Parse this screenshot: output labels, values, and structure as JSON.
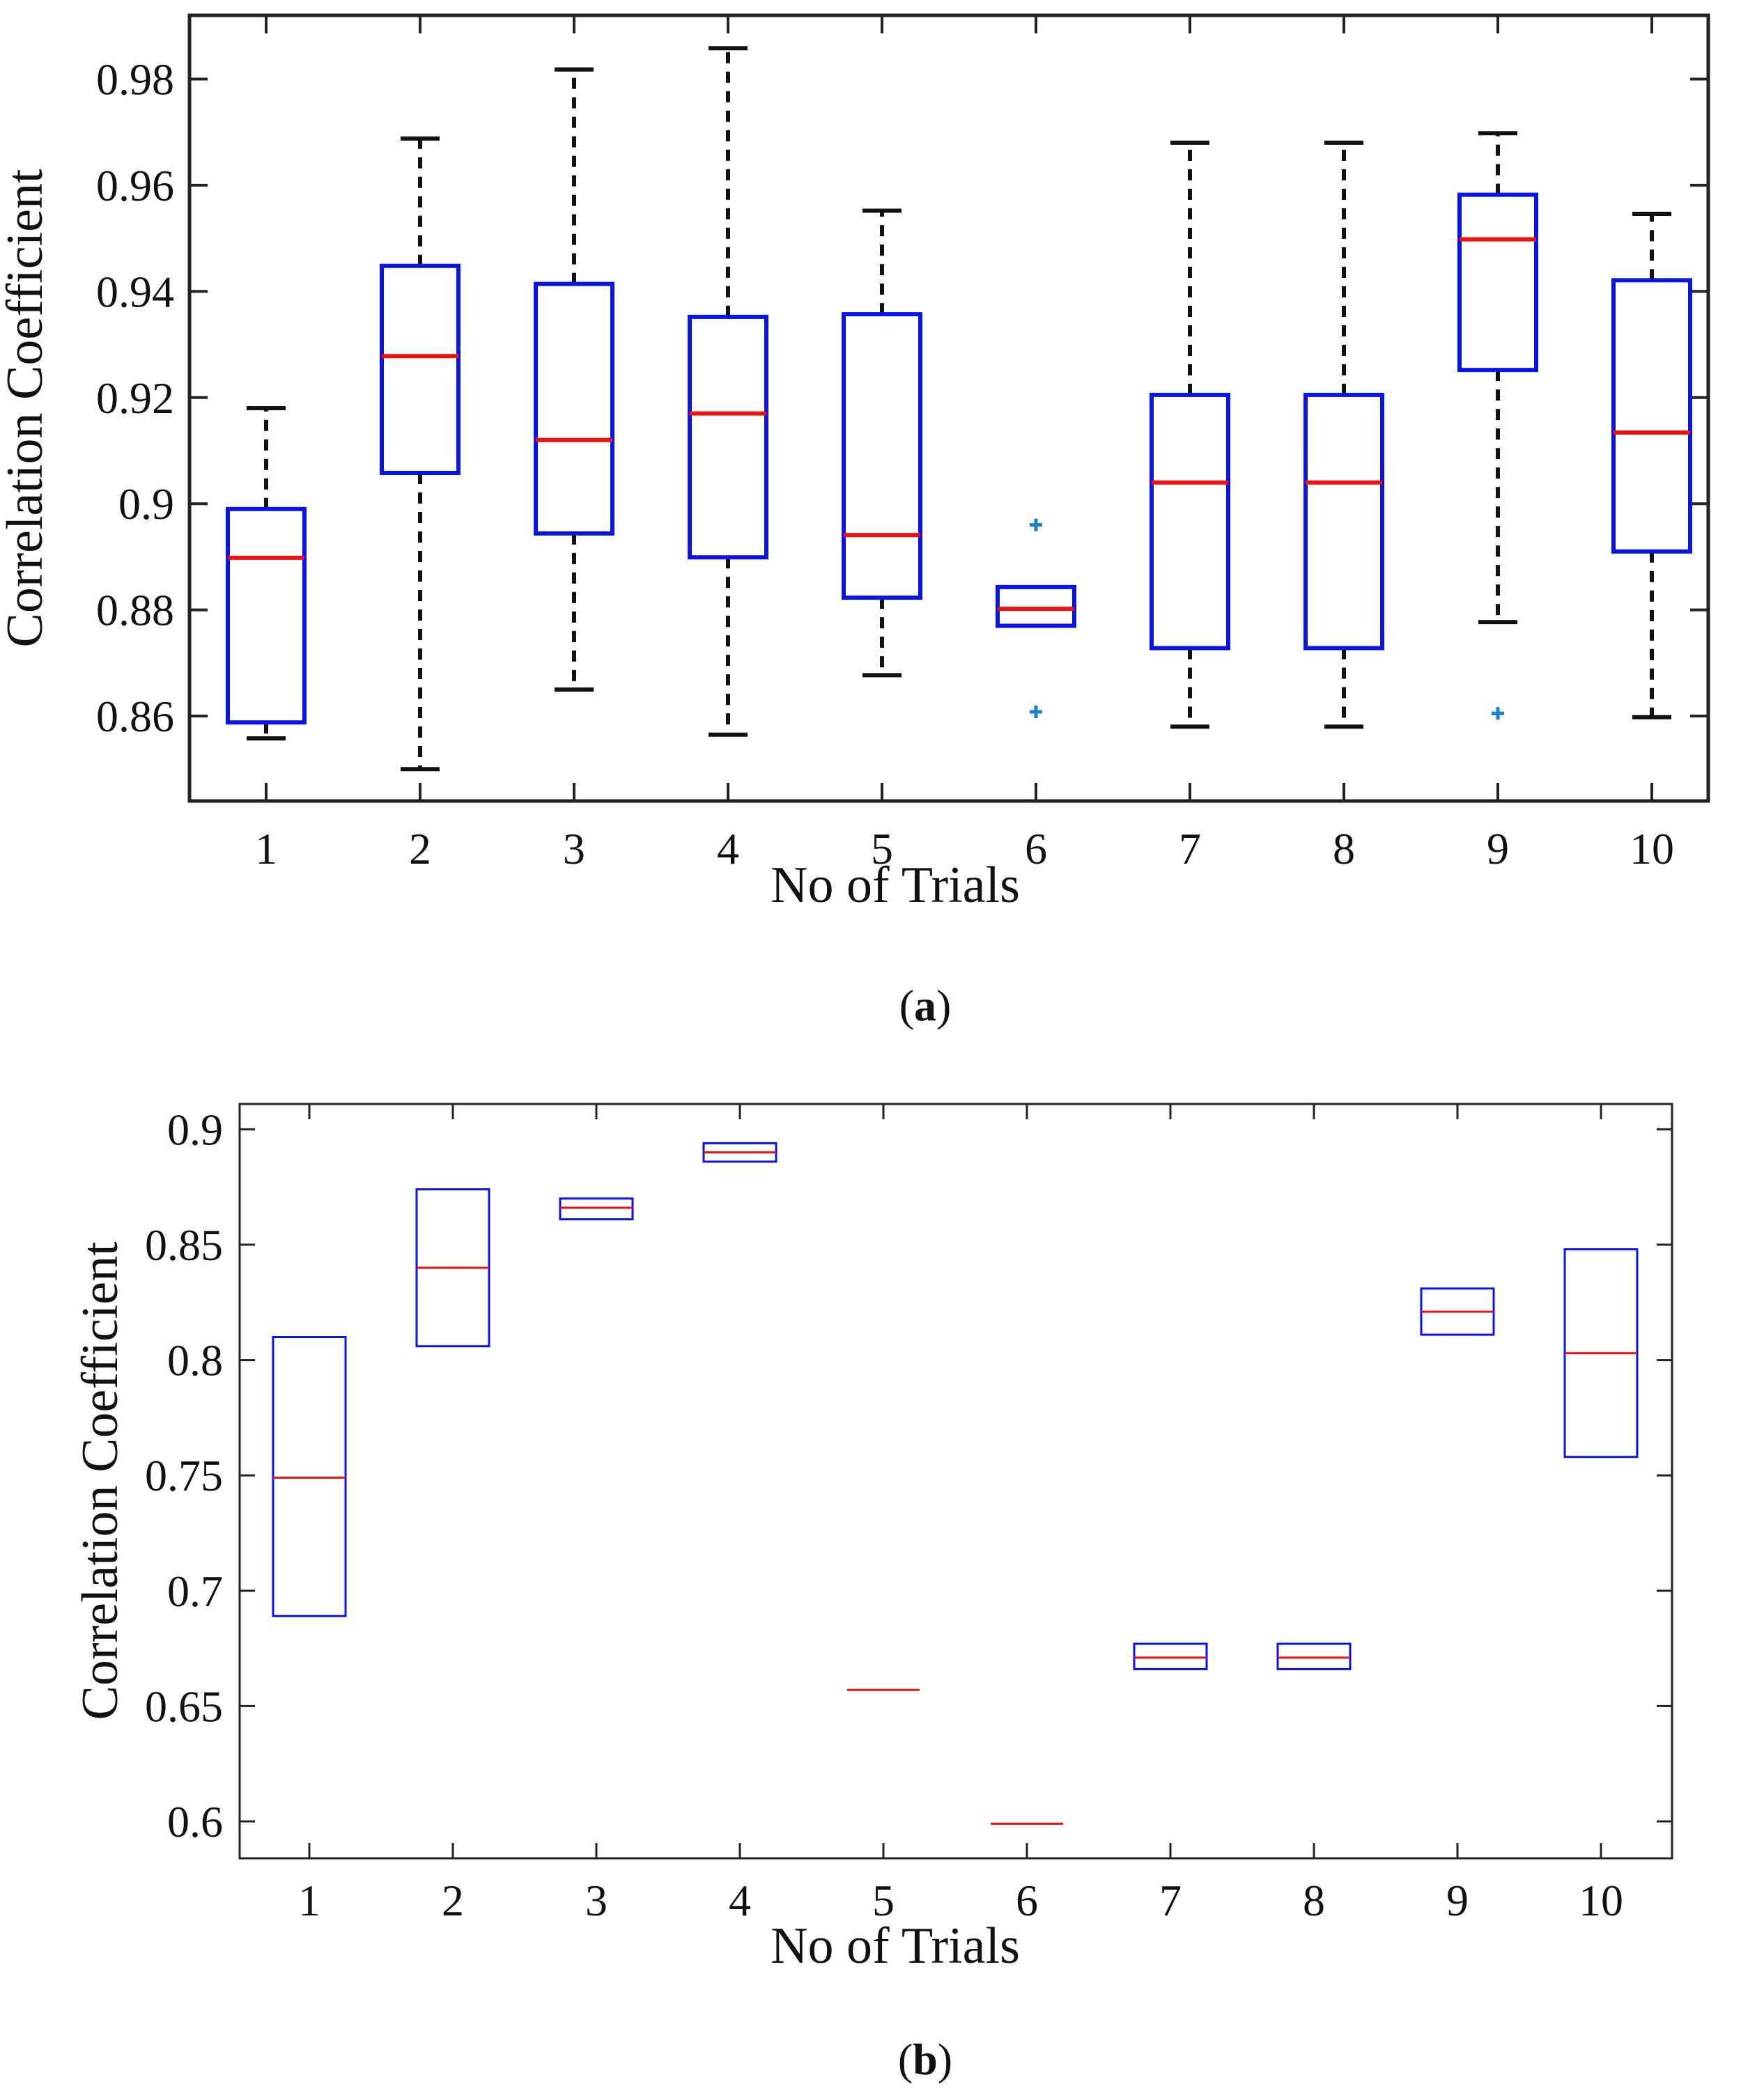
{
  "colors": {
    "box": "#0a14e6",
    "median": "#ee1111",
    "whisker": "#111111",
    "outlier": "#1a7fd0",
    "axis": "#222222"
  },
  "chart_data": [
    {
      "type": "boxplot",
      "panel": "a",
      "caption": "(a)",
      "caption_letter": "a",
      "xlabel": "No of Trials",
      "ylabel": "Correlation Coefficient",
      "ylim": [
        0.844,
        0.992
      ],
      "yticks": [
        0.86,
        0.88,
        0.9,
        0.92,
        0.94,
        0.96,
        0.98
      ],
      "ytick_labels": [
        "0.86",
        "0.88",
        "0.9",
        "0.92",
        "0.94",
        "0.96",
        "0.98"
      ],
      "categories": [
        "1",
        "2",
        "3",
        "4",
        "5",
        "6",
        "7",
        "8",
        "9",
        "10"
      ],
      "whiskers_dashed": true,
      "boxes": [
        {
          "q1": 0.8588,
          "median": 0.8898,
          "q3": 0.899,
          "lower_whisker": 0.8558,
          "upper_whisker": 0.918,
          "outliers": []
        },
        {
          "q1": 0.9058,
          "median": 0.9278,
          "q3": 0.9448,
          "lower_whisker": 0.85,
          "upper_whisker": 0.9688,
          "outliers": []
        },
        {
          "q1": 0.8944,
          "median": 0.912,
          "q3": 0.9414,
          "lower_whisker": 0.865,
          "upper_whisker": 0.9818,
          "outliers": []
        },
        {
          "q1": 0.8899,
          "median": 0.917,
          "q3": 0.9352,
          "lower_whisker": 0.8565,
          "upper_whisker": 0.9858,
          "outliers": []
        },
        {
          "q1": 0.8823,
          "median": 0.8941,
          "q3": 0.9357,
          "lower_whisker": 0.8677,
          "upper_whisker": 0.9552,
          "outliers": []
        },
        {
          "q1": 0.877,
          "median": 0.8802,
          "q3": 0.8843,
          "lower_whisker": null,
          "upper_whisker": null,
          "outliers": [
            0.896,
            0.8608
          ]
        },
        {
          "q1": 0.8728,
          "median": 0.904,
          "q3": 0.9205,
          "lower_whisker": 0.858,
          "upper_whisker": 0.968,
          "outliers": []
        },
        {
          "q1": 0.8728,
          "median": 0.904,
          "q3": 0.9205,
          "lower_whisker": 0.858,
          "upper_whisker": 0.968,
          "outliers": []
        },
        {
          "q1": 0.9252,
          "median": 0.9498,
          "q3": 0.9582,
          "lower_whisker": 0.8777,
          "upper_whisker": 0.9698,
          "outliers": [
            0.8605
          ]
        },
        {
          "q1": 0.891,
          "median": 0.9134,
          "q3": 0.9421,
          "lower_whisker": 0.8598,
          "upper_whisker": 0.9546,
          "outliers": []
        }
      ]
    },
    {
      "type": "boxplot",
      "panel": "b",
      "caption": "(b)",
      "caption_letter": "b",
      "xlabel": "No of Trials",
      "ylabel": "Correlation Coefficient",
      "ylim": [
        0.584,
        0.911
      ],
      "yticks": [
        0.6,
        0.65,
        0.7,
        0.75,
        0.8,
        0.85,
        0.9
      ],
      "ytick_labels": [
        "0.6",
        "0.65",
        "0.7",
        "0.75",
        "0.8",
        "0.85",
        "0.9"
      ],
      "categories": [
        "1",
        "2",
        "3",
        "4",
        "5",
        "6",
        "7",
        "8",
        "9",
        "10"
      ],
      "whiskers_dashed": false,
      "boxes": [
        {
          "q1": 0.689,
          "median": 0.749,
          "q3": 0.81,
          "lower_whisker": null,
          "upper_whisker": null,
          "outliers": []
        },
        {
          "q1": 0.806,
          "median": 0.84,
          "q3": 0.874,
          "lower_whisker": null,
          "upper_whisker": null,
          "outliers": []
        },
        {
          "q1": 0.861,
          "median": 0.866,
          "q3": 0.87,
          "lower_whisker": null,
          "upper_whisker": null,
          "outliers": []
        },
        {
          "q1": 0.886,
          "median": 0.89,
          "q3": 0.894,
          "lower_whisker": null,
          "upper_whisker": null,
          "outliers": []
        },
        {
          "q1": 0.657,
          "median": 0.657,
          "q3": 0.657,
          "lower_whisker": null,
          "upper_whisker": null,
          "outliers": []
        },
        {
          "q1": 0.599,
          "median": 0.599,
          "q3": 0.599,
          "lower_whisker": null,
          "upper_whisker": null,
          "outliers": []
        },
        {
          "q1": 0.666,
          "median": 0.671,
          "q3": 0.677,
          "lower_whisker": null,
          "upper_whisker": null,
          "outliers": []
        },
        {
          "q1": 0.666,
          "median": 0.671,
          "q3": 0.677,
          "lower_whisker": null,
          "upper_whisker": null,
          "outliers": []
        },
        {
          "q1": 0.811,
          "median": 0.821,
          "q3": 0.831,
          "lower_whisker": null,
          "upper_whisker": null,
          "outliers": []
        },
        {
          "q1": 0.758,
          "median": 0.803,
          "q3": 0.848,
          "lower_whisker": null,
          "upper_whisker": null,
          "outliers": []
        }
      ]
    }
  ]
}
